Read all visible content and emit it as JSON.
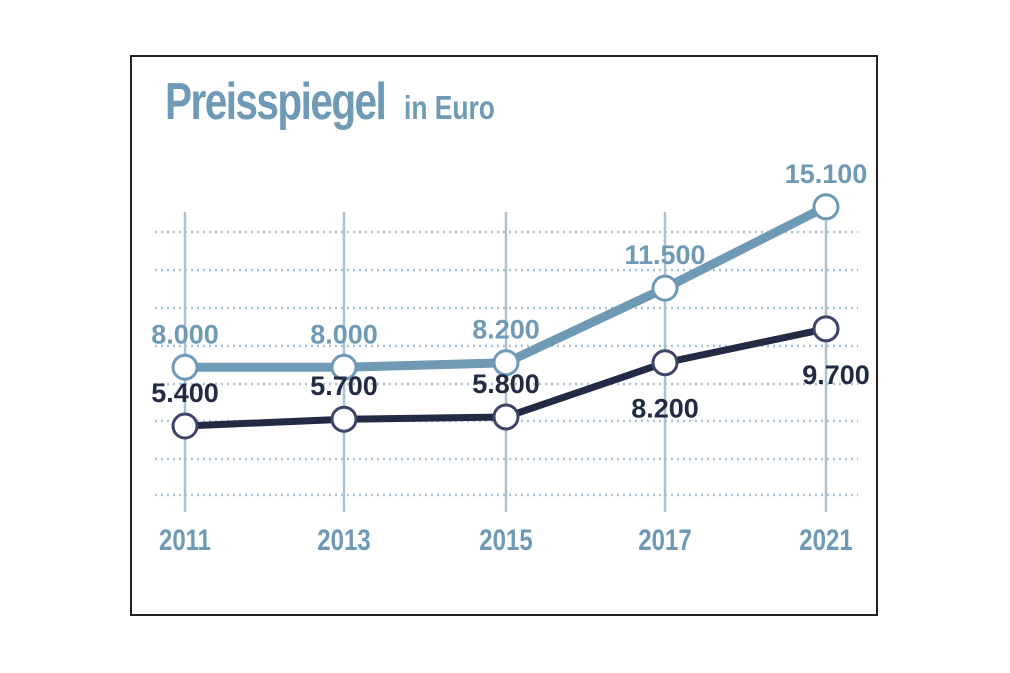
{
  "chart_data": {
    "type": "line",
    "title": "Preisspiegel",
    "subtitle": "in Euro",
    "categories": [
      "2011",
      "2013",
      "2015",
      "2017",
      "2021"
    ],
    "series": [
      {
        "values": [
          8000,
          8000,
          8200,
          11500,
          15100
        ],
        "labels": [
          "8.000",
          "8.000",
          "8.200",
          "11.500",
          "15.100"
        ],
        "color": "#6f9ab5"
      },
      {
        "values": [
          5400,
          5700,
          5800,
          8200,
          9700
        ],
        "labels": [
          "5.400",
          "5.700",
          "5.800",
          "8.200",
          "9.700"
        ],
        "color": "#222a44"
      }
    ],
    "grid": true,
    "gridColor": "#a9c3d3"
  }
}
